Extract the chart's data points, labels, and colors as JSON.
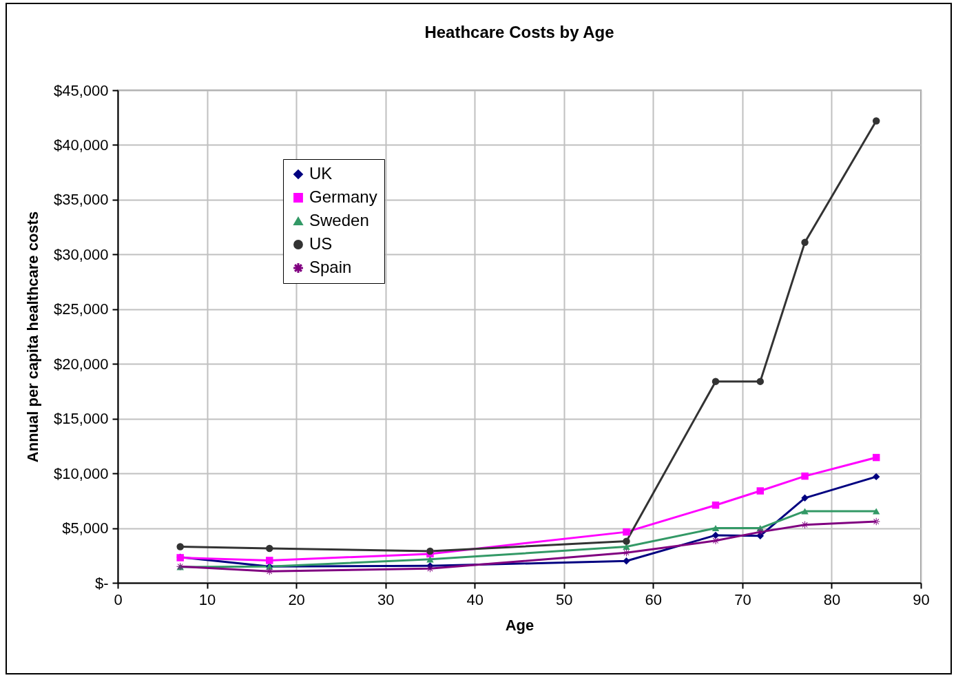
{
  "chart_data": {
    "type": "line",
    "title": "Heathcare Costs by Age",
    "xlabel": "Age",
    "ylabel": "Annual per capita healthcare costs",
    "x": [
      7,
      17,
      35,
      57,
      67,
      72,
      77,
      85
    ],
    "series": [
      {
        "name": "UK",
        "color": "#000080",
        "marker": "diamond",
        "values": [
          2350,
          1500,
          1550,
          2000,
          4350,
          4300,
          7750,
          9700
        ]
      },
      {
        "name": "Germany",
        "color": "#ff00ff",
        "marker": "square",
        "values": [
          2300,
          2050,
          2650,
          4650,
          7100,
          8400,
          9750,
          11450
        ]
      },
      {
        "name": "Sweden",
        "color": "#339966",
        "marker": "triangle",
        "values": [
          1450,
          1500,
          2150,
          3300,
          5000,
          5000,
          6550,
          6550
        ]
      },
      {
        "name": "US",
        "color": "#333333",
        "marker": "circle",
        "values": [
          3300,
          3150,
          2900,
          3800,
          18400,
          18400,
          31100,
          42200
        ]
      },
      {
        "name": "Spain",
        "color": "#800080",
        "marker": "cross",
        "values": [
          1500,
          1050,
          1300,
          2750,
          3850,
          4650,
          5300,
          5600
        ]
      }
    ],
    "xlim": [
      0,
      90
    ],
    "xticks": [
      0,
      10,
      20,
      30,
      40,
      50,
      60,
      70,
      80,
      90
    ],
    "ylim": [
      0,
      45000
    ],
    "yticks": [
      {
        "value": 0,
        "label": "$-"
      },
      {
        "value": 5000,
        "label": "$5,000"
      },
      {
        "value": 10000,
        "label": "$10,000"
      },
      {
        "value": 15000,
        "label": "$15,000"
      },
      {
        "value": 20000,
        "label": "$20,000"
      },
      {
        "value": 25000,
        "label": "$25,000"
      },
      {
        "value": 30000,
        "label": "$30,000"
      },
      {
        "value": 35000,
        "label": "$35,000"
      },
      {
        "value": 40000,
        "label": "$40,000"
      },
      {
        "value": 45000,
        "label": "$45,000"
      }
    ],
    "grid": true,
    "legend": "top left",
    "line_style": "solid"
  }
}
